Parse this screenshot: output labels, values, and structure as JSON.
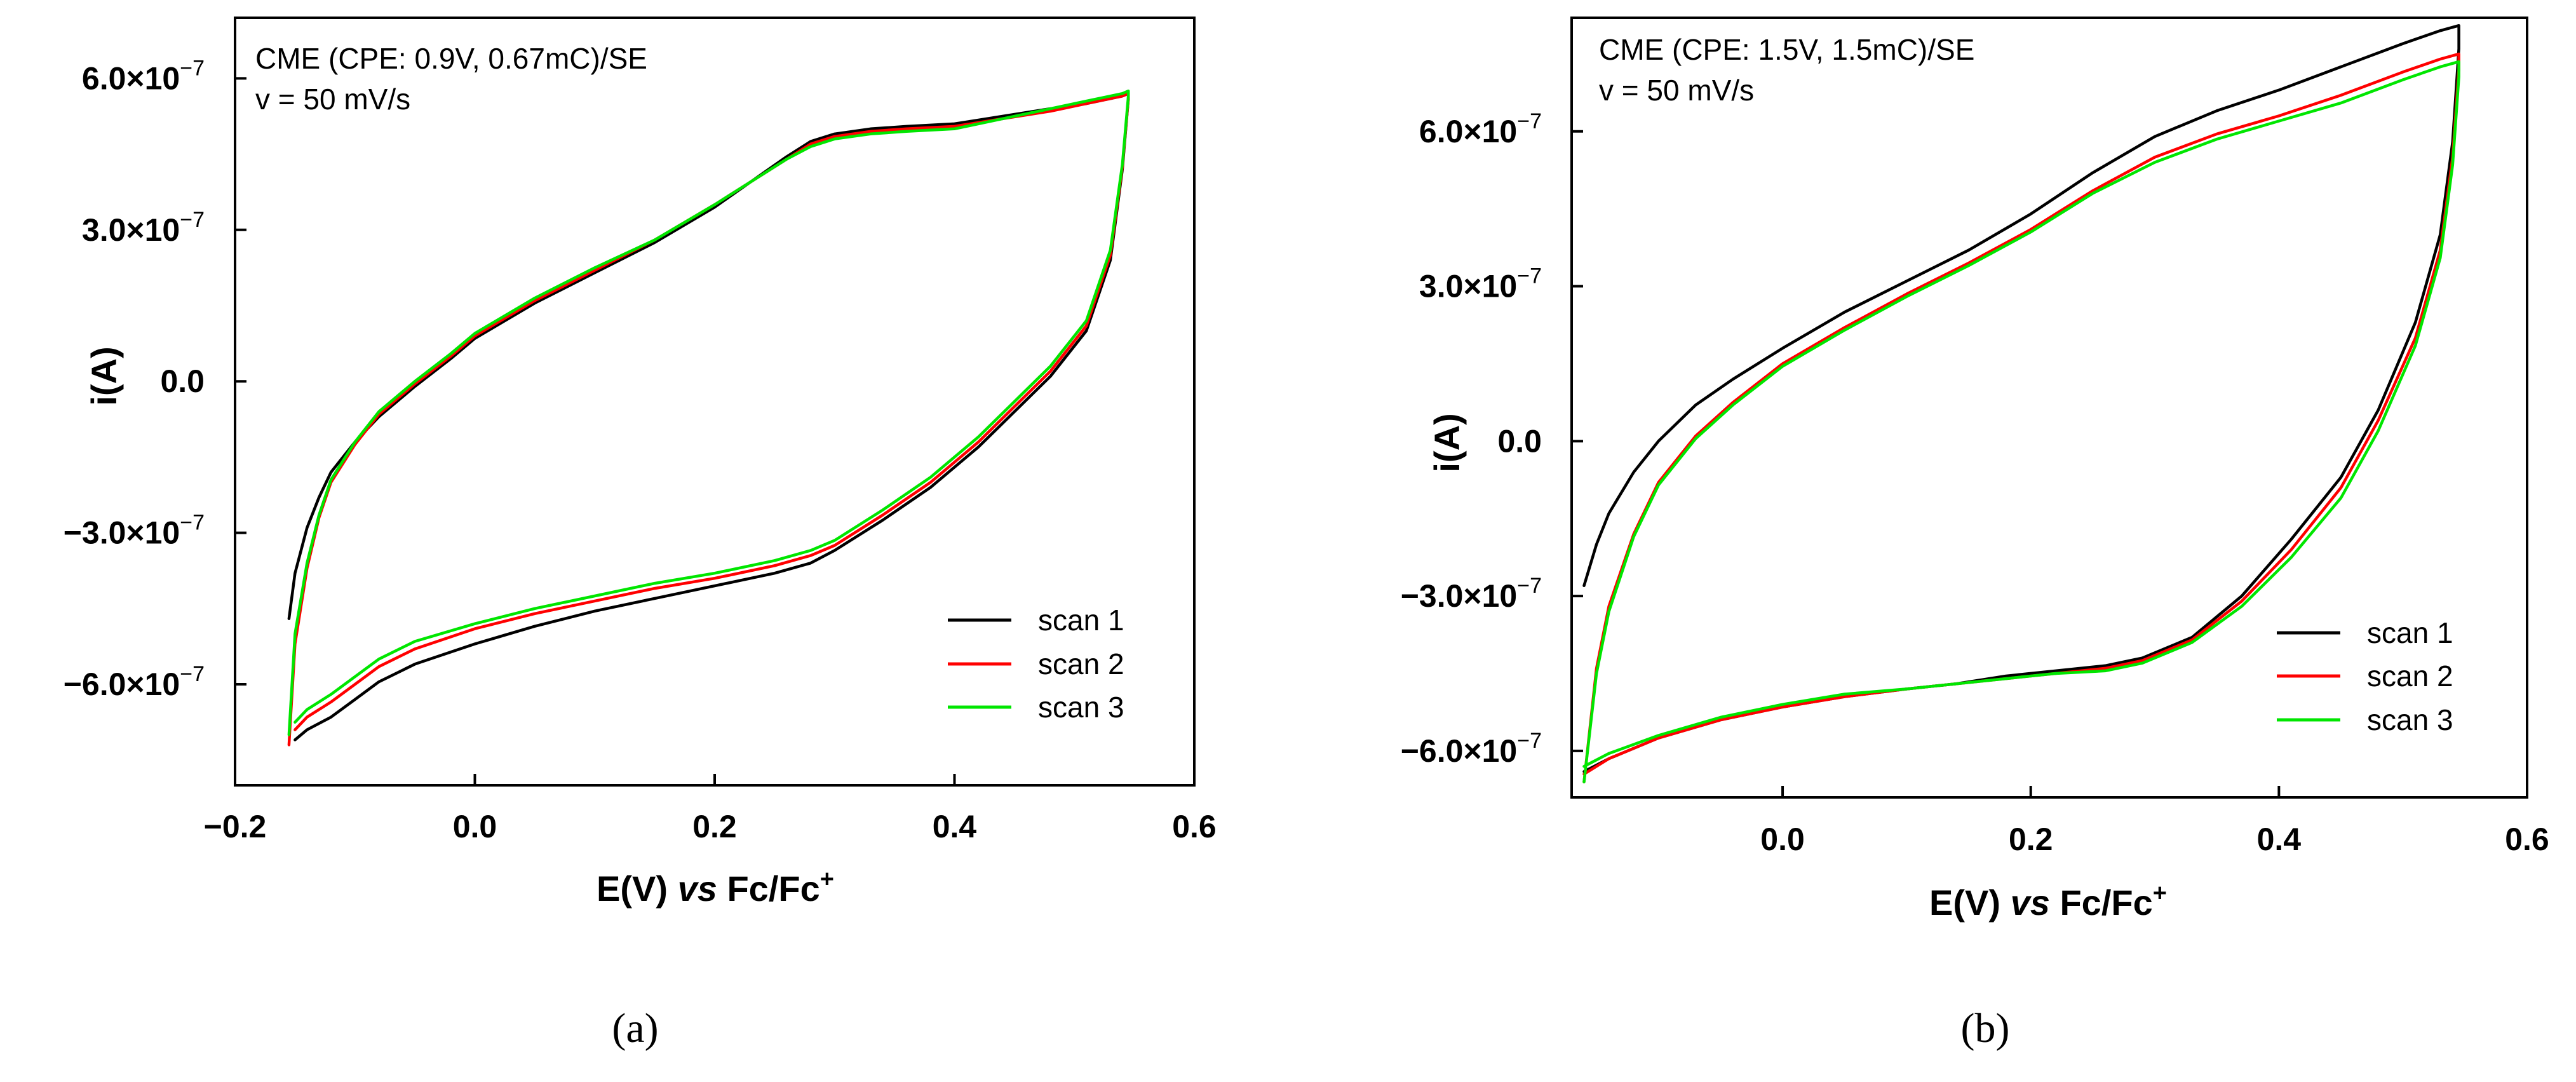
{
  "colors": {
    "scan 1": "#000000",
    "scan 2": "#ff0000",
    "scan 3": "#00e600"
  },
  "chart_data": [
    {
      "type": "line",
      "panel_label": "(a)",
      "annotations": [
        "CME (CPE: 0.9V, 0.67mC)/SE",
        "v = 50 mV/s"
      ],
      "xlabel": "E(V) vs Fc/Fc+",
      "ylabel": "i(A)",
      "xlim": [
        -0.2,
        0.6
      ],
      "ylim": [
        -8e-07,
        7.2e-07
      ],
      "x_ticks": [
        -0.2,
        0.0,
        0.2,
        0.4,
        0.6
      ],
      "x_tick_labels": [
        "−0.2",
        "0.0",
        "0.2",
        "0.4",
        "0.6"
      ],
      "y_ticks": [
        6e-07,
        3e-07,
        0.0,
        -3e-07,
        -6e-07
      ],
      "y_tick_labels": [
        {
          "mantissa": "6.0×10",
          "exp": "−7"
        },
        {
          "mantissa": "3.0×10",
          "exp": "−7"
        },
        {
          "mantissa": "0.0",
          "exp": ""
        },
        {
          "mantissa": "−3.0×10",
          "exp": "−7"
        },
        {
          "mantissa": "−6.0×10",
          "exp": "−7"
        }
      ],
      "legend": [
        "scan 1",
        "scan 2",
        "scan 3"
      ],
      "legend_position": "bottom-right",
      "series": [
        {
          "name": "scan 1",
          "x": [
            -0.155,
            -0.15,
            -0.14,
            -0.13,
            -0.12,
            -0.1,
            -0.08,
            -0.05,
            -0.02,
            0.0,
            0.05,
            0.1,
            0.15,
            0.2,
            0.23,
            0.26,
            0.28,
            0.3,
            0.33,
            0.36,
            0.4,
            0.44,
            0.48,
            0.51,
            0.53,
            0.54,
            0.545,
            0.545,
            0.54,
            0.53,
            0.51,
            0.48,
            0.45,
            0.42,
            0.38,
            0.34,
            0.3,
            0.28,
            0.25,
            0.2,
            0.15,
            0.1,
            0.05,
            0.0,
            -0.05,
            -0.08,
            -0.1,
            -0.12,
            -0.14,
            -0.15
          ],
          "y": [
            -4.7e-07,
            -3.8e-07,
            -2.9e-07,
            -2.3e-07,
            -1.8e-07,
            -1.2e-07,
            -7e-08,
            -1e-08,
            4.5e-08,
            8.5e-08,
            1.55e-07,
            2.15e-07,
            2.75e-07,
            3.45e-07,
            3.95e-07,
            4.45e-07,
            4.75e-07,
            4.9e-07,
            5e-07,
            5.05e-07,
            5.1e-07,
            5.25e-07,
            5.4e-07,
            5.5e-07,
            5.6e-07,
            5.65e-07,
            5.7e-07,
            5.6e-07,
            4.2e-07,
            2.4e-07,
            1e-07,
            1e-08,
            -6e-08,
            -1.3e-07,
            -2.1e-07,
            -2.75e-07,
            -3.35e-07,
            -3.6e-07,
            -3.8e-07,
            -4.05e-07,
            -4.3e-07,
            -4.55e-07,
            -4.85e-07,
            -5.2e-07,
            -5.6e-07,
            -5.95e-07,
            -6.3e-07,
            -6.65e-07,
            -6.9e-07,
            -7.1e-07
          ]
        },
        {
          "name": "scan 2",
          "x": [
            -0.155,
            -0.15,
            -0.14,
            -0.13,
            -0.12,
            -0.1,
            -0.08,
            -0.05,
            -0.02,
            0.0,
            0.05,
            0.1,
            0.15,
            0.2,
            0.23,
            0.26,
            0.28,
            0.3,
            0.33,
            0.36,
            0.4,
            0.44,
            0.48,
            0.51,
            0.53,
            0.54,
            0.545,
            0.545,
            0.54,
            0.53,
            0.51,
            0.48,
            0.45,
            0.42,
            0.38,
            0.34,
            0.3,
            0.28,
            0.25,
            0.2,
            0.15,
            0.1,
            0.05,
            0.0,
            -0.05,
            -0.08,
            -0.1,
            -0.12,
            -0.14,
            -0.15
          ],
          "y": [
            -7.2e-07,
            -5.2e-07,
            -3.7e-07,
            -2.7e-07,
            -2e-07,
            -1.25e-07,
            -6.5e-08,
            -5e-09,
            5e-08,
            9e-08,
            1.6e-07,
            2.2e-07,
            2.8e-07,
            3.5e-07,
            3.95e-07,
            4.4e-07,
            4.7e-07,
            4.85e-07,
            4.95e-07,
            5e-07,
            5.05e-07,
            5.2e-07,
            5.35e-07,
            5.5e-07,
            5.6e-07,
            5.65e-07,
            5.7e-07,
            5.6e-07,
            4.25e-07,
            2.5e-07,
            1.1e-07,
            2e-08,
            -5e-08,
            -1.2e-07,
            -2e-07,
            -2.65e-07,
            -3.25e-07,
            -3.45e-07,
            -3.65e-07,
            -3.9e-07,
            -4.1e-07,
            -4.35e-07,
            -4.6e-07,
            -4.9e-07,
            -5.3e-07,
            -5.65e-07,
            -6e-07,
            -6.35e-07,
            -6.65e-07,
            -6.9e-07
          ]
        },
        {
          "name": "scan 3",
          "x": [
            -0.155,
            -0.15,
            -0.14,
            -0.13,
            -0.12,
            -0.1,
            -0.08,
            -0.05,
            -0.02,
            0.0,
            0.05,
            0.1,
            0.15,
            0.2,
            0.23,
            0.26,
            0.28,
            0.3,
            0.33,
            0.36,
            0.4,
            0.44,
            0.48,
            0.51,
            0.53,
            0.54,
            0.545,
            0.545,
            0.54,
            0.53,
            0.51,
            0.48,
            0.45,
            0.42,
            0.38,
            0.34,
            0.3,
            0.28,
            0.25,
            0.2,
            0.15,
            0.1,
            0.05,
            0.0,
            -0.05,
            -0.08,
            -0.1,
            -0.12,
            -0.14,
            -0.15
          ],
          "y": [
            -7e-07,
            -5e-07,
            -3.6e-07,
            -2.65e-07,
            -1.95e-07,
            -1.2e-07,
            -6e-08,
            0.0,
            5.5e-08,
            9.5e-08,
            1.65e-07,
            2.25e-07,
            2.8e-07,
            3.5e-07,
            3.95e-07,
            4.4e-07,
            4.65e-07,
            4.8e-07,
            4.9e-07,
            4.95e-07,
            5e-07,
            5.2e-07,
            5.4e-07,
            5.55e-07,
            5.65e-07,
            5.7e-07,
            5.75e-07,
            5.65e-07,
            4.3e-07,
            2.6e-07,
            1.2e-07,
            3e-08,
            -4e-08,
            -1.1e-07,
            -1.9e-07,
            -2.55e-07,
            -3.15e-07,
            -3.35e-07,
            -3.55e-07,
            -3.8e-07,
            -4e-07,
            -4.25e-07,
            -4.5e-07,
            -4.8e-07,
            -5.15e-07,
            -5.5e-07,
            -5.85e-07,
            -6.2e-07,
            -6.5e-07,
            -6.75e-07
          ]
        }
      ]
    },
    {
      "type": "line",
      "panel_label": "(b)",
      "annotations": [
        "CME (CPE: 1.5V, 1.5mC)/SE",
        "v = 50 mV/s"
      ],
      "xlabel": "E(V) vs Fc/Fc+",
      "ylabel": "i(A)",
      "xlim": [
        -0.17,
        0.6
      ],
      "ylim": [
        -6.9e-07,
        8.2e-07
      ],
      "x_ticks": [
        0.0,
        0.2,
        0.4,
        0.6
      ],
      "x_tick_labels": [
        "0.0",
        "0.2",
        "0.4",
        "0.6"
      ],
      "y_ticks": [
        6e-07,
        3e-07,
        0.0,
        -3e-07,
        -6e-07
      ],
      "y_tick_labels": [
        {
          "mantissa": "6.0×10",
          "exp": "−7"
        },
        {
          "mantissa": "3.0×10",
          "exp": "−7"
        },
        {
          "mantissa": "0.0",
          "exp": ""
        },
        {
          "mantissa": "−3.0×10",
          "exp": "−7"
        },
        {
          "mantissa": "−6.0×10",
          "exp": "−7"
        }
      ],
      "legend": [
        "scan 1",
        "scan 2",
        "scan 3"
      ],
      "legend_position": "bottom-right",
      "series": [
        {
          "name": "scan 1",
          "x": [
            -0.16,
            -0.15,
            -0.14,
            -0.12,
            -0.1,
            -0.07,
            -0.04,
            0.0,
            0.05,
            0.1,
            0.15,
            0.2,
            0.25,
            0.3,
            0.35,
            0.4,
            0.45,
            0.5,
            0.53,
            0.545,
            0.545,
            0.54,
            0.53,
            0.51,
            0.48,
            0.45,
            0.41,
            0.37,
            0.33,
            0.29,
            0.26,
            0.22,
            0.18,
            0.14,
            0.1,
            0.05,
            0.0,
            -0.05,
            -0.1,
            -0.14,
            -0.16
          ],
          "y": [
            -2.8e-07,
            -2e-07,
            -1.4e-07,
            -6e-08,
            0.0,
            7e-08,
            1.2e-07,
            1.8e-07,
            2.5e-07,
            3.1e-07,
            3.7e-07,
            4.4e-07,
            5.2e-07,
            5.9e-07,
            6.4e-07,
            6.8e-07,
            7.25e-07,
            7.7e-07,
            7.95e-07,
            8.05e-07,
            7.6e-07,
            5.8e-07,
            4e-07,
            2.3e-07,
            6e-08,
            -7e-08,
            -1.9e-07,
            -3e-07,
            -3.8e-07,
            -4.2e-07,
            -4.35e-07,
            -4.45e-07,
            -4.55e-07,
            -4.7e-07,
            -4.8e-07,
            -4.95e-07,
            -5.15e-07,
            -5.4e-07,
            -5.75e-07,
            -6.15e-07,
            -6.4e-07
          ]
        },
        {
          "name": "scan 2",
          "x": [
            -0.16,
            -0.15,
            -0.14,
            -0.12,
            -0.1,
            -0.07,
            -0.04,
            0.0,
            0.05,
            0.1,
            0.15,
            0.2,
            0.25,
            0.3,
            0.35,
            0.4,
            0.45,
            0.5,
            0.53,
            0.545,
            0.545,
            0.54,
            0.53,
            0.51,
            0.48,
            0.45,
            0.41,
            0.37,
            0.33,
            0.29,
            0.26,
            0.22,
            0.18,
            0.14,
            0.1,
            0.05,
            0.0,
            -0.05,
            -0.1,
            -0.14,
            -0.16
          ],
          "y": [
            -6.6e-07,
            -4.4e-07,
            -3.2e-07,
            -1.8e-07,
            -8e-08,
            1e-08,
            7.5e-08,
            1.5e-07,
            2.2e-07,
            2.85e-07,
            3.45e-07,
            4.1e-07,
            4.85e-07,
            5.5e-07,
            5.95e-07,
            6.3e-07,
            6.7e-07,
            7.15e-07,
            7.4e-07,
            7.5e-07,
            7.2e-07,
            5.5e-07,
            3.7e-07,
            2e-07,
            4e-08,
            -9e-08,
            -2.1e-07,
            -3.1e-07,
            -3.85e-07,
            -4.25e-07,
            -4.4e-07,
            -4.5e-07,
            -4.6e-07,
            -4.7e-07,
            -4.8e-07,
            -4.95e-07,
            -5.15e-07,
            -5.4e-07,
            -5.75e-07,
            -6.15e-07,
            -6.45e-07
          ]
        },
        {
          "name": "scan 3",
          "x": [
            -0.16,
            -0.15,
            -0.14,
            -0.12,
            -0.1,
            -0.07,
            -0.04,
            0.0,
            0.05,
            0.1,
            0.15,
            0.2,
            0.25,
            0.3,
            0.35,
            0.4,
            0.45,
            0.5,
            0.53,
            0.545,
            0.545,
            0.54,
            0.53,
            0.51,
            0.48,
            0.45,
            0.41,
            0.37,
            0.33,
            0.29,
            0.26,
            0.22,
            0.18,
            0.14,
            0.1,
            0.05,
            0.0,
            -0.05,
            -0.1,
            -0.14,
            -0.16
          ],
          "y": [
            -6.6e-07,
            -4.5e-07,
            -3.3e-07,
            -1.85e-07,
            -8.5e-08,
            5e-09,
            7e-08,
            1.45e-07,
            2.15e-07,
            2.8e-07,
            3.4e-07,
            4.05e-07,
            4.8e-07,
            5.4e-07,
            5.85e-07,
            6.2e-07,
            6.55e-07,
            7e-07,
            7.25e-07,
            7.35e-07,
            7.05e-07,
            5.35e-07,
            3.55e-07,
            1.85e-07,
            2e-08,
            -1.1e-07,
            -2.25e-07,
            -3.2e-07,
            -3.9e-07,
            -4.3e-07,
            -4.45e-07,
            -4.5e-07,
            -4.6e-07,
            -4.7e-07,
            -4.8e-07,
            -4.9e-07,
            -5.1e-07,
            -5.35e-07,
            -5.7e-07,
            -6.05e-07,
            -6.3e-07
          ]
        }
      ]
    }
  ]
}
